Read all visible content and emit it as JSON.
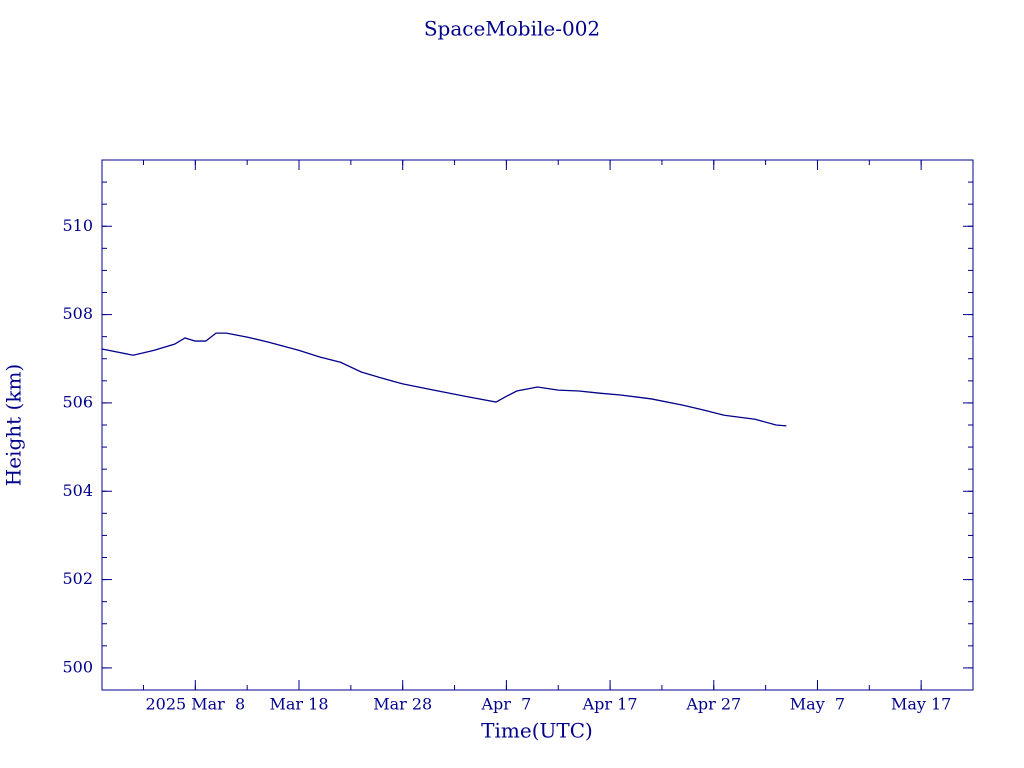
{
  "chart_data": {
    "type": "line",
    "title": "SpaceMobile-002",
    "x_label": "Time(UTC)",
    "y_label": "Height (km)",
    "color": "#00008b",
    "xlim": [
      "2025-02-27",
      "2025-05-22"
    ],
    "xticks": [
      {
        "value": "2025-03-08",
        "label": "2025 Mar  8"
      },
      {
        "value": "2025-03-18",
        "label": "Mar 18"
      },
      {
        "value": "2025-03-28",
        "label": "Mar 28"
      },
      {
        "value": "2025-04-07",
        "label": "Apr  7"
      },
      {
        "value": "2025-04-17",
        "label": "Apr 17"
      },
      {
        "value": "2025-04-27",
        "label": "Apr 27"
      },
      {
        "value": "2025-05-07",
        "label": "May  7"
      },
      {
        "value": "2025-05-17",
        "label": "May 17"
      }
    ],
    "ylim": [
      499.5,
      511.5
    ],
    "yticks": [
      500,
      502,
      504,
      506,
      508,
      510
    ],
    "x": [
      "2025-02-27",
      "2025-03-02",
      "2025-03-04",
      "2025-03-06",
      "2025-03-07",
      "2025-03-08",
      "2025-03-09",
      "2025-03-10",
      "2025-03-11",
      "2025-03-13",
      "2025-03-15",
      "2025-03-18",
      "2025-03-20",
      "2025-03-22",
      "2025-03-24",
      "2025-03-26",
      "2025-03-28",
      "2025-03-31",
      "2025-04-03",
      "2025-04-06",
      "2025-04-07",
      "2025-04-08",
      "2025-04-10",
      "2025-04-12",
      "2025-04-14",
      "2025-04-16",
      "2025-04-18",
      "2025-04-21",
      "2025-04-24",
      "2025-04-26",
      "2025-04-28",
      "2025-05-01",
      "2025-05-03",
      "2025-05-04"
    ],
    "series": [
      {
        "name": "SpaceMobile-002",
        "color": "#00008b",
        "values": [
          507.22,
          507.08,
          507.19,
          507.33,
          507.47,
          507.4,
          507.4,
          507.58,
          507.58,
          507.49,
          507.38,
          507.19,
          507.04,
          506.92,
          506.7,
          506.56,
          506.43,
          506.29,
          506.15,
          506.02,
          506.15,
          506.27,
          506.36,
          506.29,
          506.27,
          506.22,
          506.18,
          506.09,
          505.95,
          505.84,
          505.72,
          505.63,
          505.5,
          505.48
        ]
      }
    ]
  }
}
